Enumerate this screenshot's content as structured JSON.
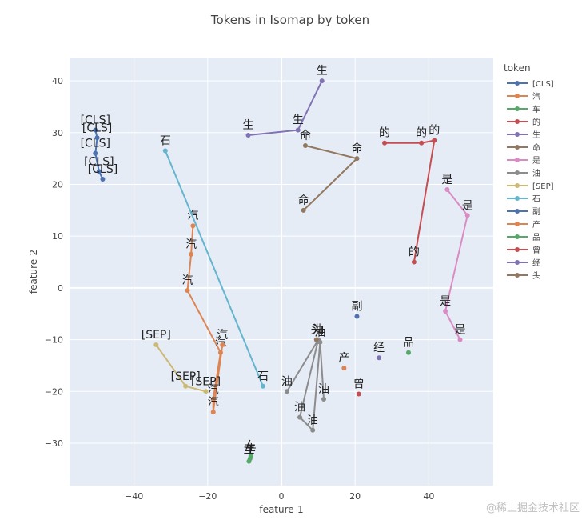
{
  "chart_data": {
    "type": "line",
    "title": "Tokens in Isomap by token",
    "xlabel": "feature-1",
    "ylabel": "feature-2",
    "xlim": [
      -57.5,
      57.5
    ],
    "ylim": [
      -38.2,
      44.5
    ],
    "xticks": [
      -40,
      -20,
      0,
      20,
      40
    ],
    "yticks": [
      -30,
      -20,
      -10,
      0,
      10,
      20,
      30,
      40
    ],
    "grid": true,
    "legend_title": "token",
    "legend_position": "right",
    "series": [
      {
        "name": "[CLS]",
        "color": "#4C72B0",
        "points": [
          [
            -50.5,
            30.5,
            "[CLS]"
          ],
          [
            -50,
            29,
            "[CLS]"
          ],
          [
            -50.5,
            26,
            "[CLS]"
          ],
          [
            -49.5,
            22.5,
            "[CLS]"
          ],
          [
            -48.5,
            21,
            "[CLS]"
          ]
        ]
      },
      {
        "name": "汽",
        "color": "#DD8452",
        "points": [
          [
            -24,
            12,
            "汽"
          ],
          [
            -24.5,
            6.5,
            "汽"
          ],
          [
            -25.5,
            -0.5,
            "汽"
          ],
          [
            -16.5,
            -12.5,
            "汽"
          ],
          [
            -18.5,
            -21.5,
            "汽"
          ],
          [
            -18.5,
            -24,
            "汽"
          ],
          [
            -16,
            -11,
            "汽"
          ]
        ]
      },
      {
        "name": "车",
        "color": "#55A868",
        "points": [
          [
            -8.8,
            -33.5,
            "车"
          ],
          [
            -8.5,
            -33,
            "车"
          ],
          [
            -8.3,
            -32.5,
            "车"
          ]
        ]
      },
      {
        "name": "的",
        "color": "#C44E52",
        "points": [
          [
            28,
            28,
            "的"
          ],
          [
            38,
            28,
            "的"
          ],
          [
            41.5,
            28.5,
            "的"
          ],
          [
            36,
            5,
            "的"
          ]
        ]
      },
      {
        "name": "生",
        "color": "#8172B3",
        "points": [
          [
            -9,
            29.5,
            "生"
          ],
          [
            4.5,
            30.5,
            "生"
          ],
          [
            11,
            40,
            "生"
          ]
        ]
      },
      {
        "name": "命",
        "color": "#937860",
        "points": [
          [
            6.5,
            27.5,
            "命"
          ],
          [
            20.5,
            25,
            "命"
          ],
          [
            6,
            15,
            "命"
          ]
        ]
      },
      {
        "name": "是",
        "color": "#DA8BC3",
        "points": [
          [
            45,
            19,
            "是"
          ],
          [
            50.5,
            14,
            "是"
          ],
          [
            44.5,
            -4.5,
            "是"
          ],
          [
            48.5,
            -10,
            "是"
          ]
        ]
      },
      {
        "name": "油",
        "color": "#8C8C8C",
        "points": [
          [
            11.5,
            -21.5,
            "油"
          ],
          [
            10.5,
            -10.5,
            "油"
          ],
          [
            8.5,
            -27.5,
            "油"
          ],
          [
            5,
            -25,
            "油"
          ],
          [
            10,
            -10,
            "油"
          ],
          [
            1.5,
            -20,
            "油"
          ]
        ]
      },
      {
        "name": "[SEP]",
        "color": "#CCB974",
        "points": [
          [
            -34,
            -11,
            "[SEP]"
          ],
          [
            -26,
            -19,
            "[SEP]"
          ],
          [
            -20.5,
            -20,
            "[SEP]"
          ]
        ]
      },
      {
        "name": "石",
        "color": "#64B5CD",
        "points": [
          [
            -31.5,
            26.5,
            "石"
          ],
          [
            -5,
            -19,
            "石"
          ]
        ]
      },
      {
        "name": "副",
        "color": "#4C72B0",
        "points": [
          [
            20.5,
            -5.5,
            "副"
          ]
        ]
      },
      {
        "name": "产",
        "color": "#DD8452",
        "points": [
          [
            17,
            -15.5,
            "产"
          ]
        ]
      },
      {
        "name": "品",
        "color": "#55A868",
        "points": [
          [
            34.5,
            -12.5,
            "品"
          ]
        ]
      },
      {
        "name": "曾",
        "color": "#C44E52",
        "points": [
          [
            21,
            -20.5,
            "曾"
          ]
        ]
      },
      {
        "name": "经",
        "color": "#8172B3",
        "points": [
          [
            26.5,
            -13.5,
            "经"
          ]
        ]
      },
      {
        "name": "头",
        "color": "#937860",
        "points": [
          [
            9.5,
            -10,
            "头"
          ]
        ]
      }
    ]
  },
  "watermark": "@稀土掘金技术社区"
}
